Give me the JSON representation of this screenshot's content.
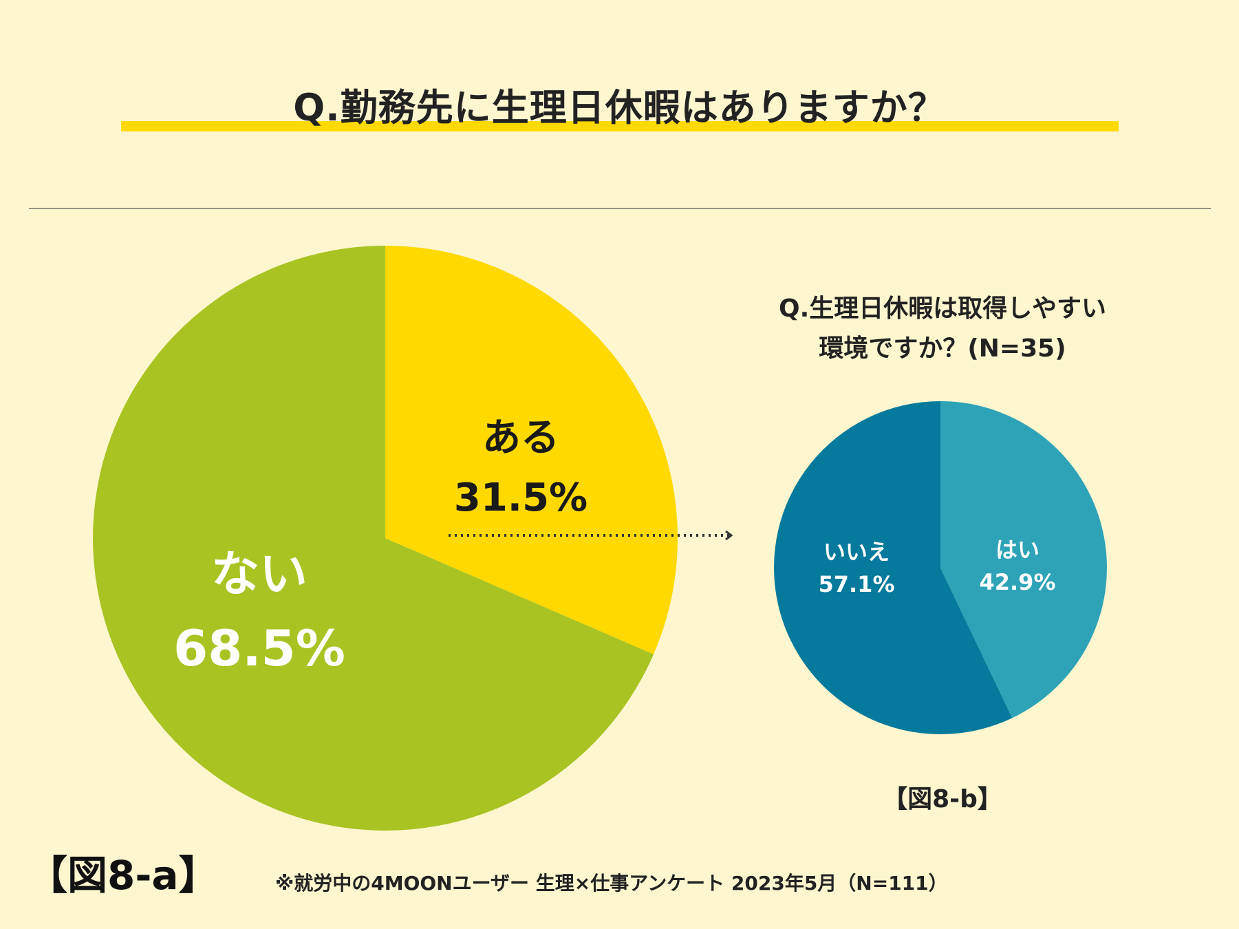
{
  "title": "Q.勤務先に生理日休暇はありますか？",
  "sub_question": {
    "line1": "Q.生理日休暇は取得しやすい",
    "line2": "環境ですか？(N=35)"
  },
  "fig_labels": {
    "a": "【図8-a】",
    "b": "【図8-b】"
  },
  "note": "※就労中の4MOONユーザー 生理×仕事アンケート 2023年5月（N=111）",
  "colors": {
    "background": "#FDF6CF",
    "accent_yellow": "#FFD900",
    "green": "#A9C323",
    "teal_light": "#2EA3B7",
    "teal_dark": "#067A9C"
  },
  "chart_data": [
    {
      "type": "pie",
      "title": "Q.勤務先に生理日休暇はありますか？",
      "slices": [
        {
          "label": "ある",
          "value": 31.5,
          "value_text": "31.5%"
        },
        {
          "label": "ない",
          "value": 68.5,
          "value_text": "68.5%"
        }
      ]
    },
    {
      "type": "pie",
      "title": "Q.生理日休暇は取得しやすい環境ですか？(N=35)",
      "slices": [
        {
          "label": "はい",
          "value": 42.9,
          "value_text": "42.9%"
        },
        {
          "label": "いいえ",
          "value": 57.1,
          "value_text": "57.1%"
        }
      ]
    }
  ]
}
